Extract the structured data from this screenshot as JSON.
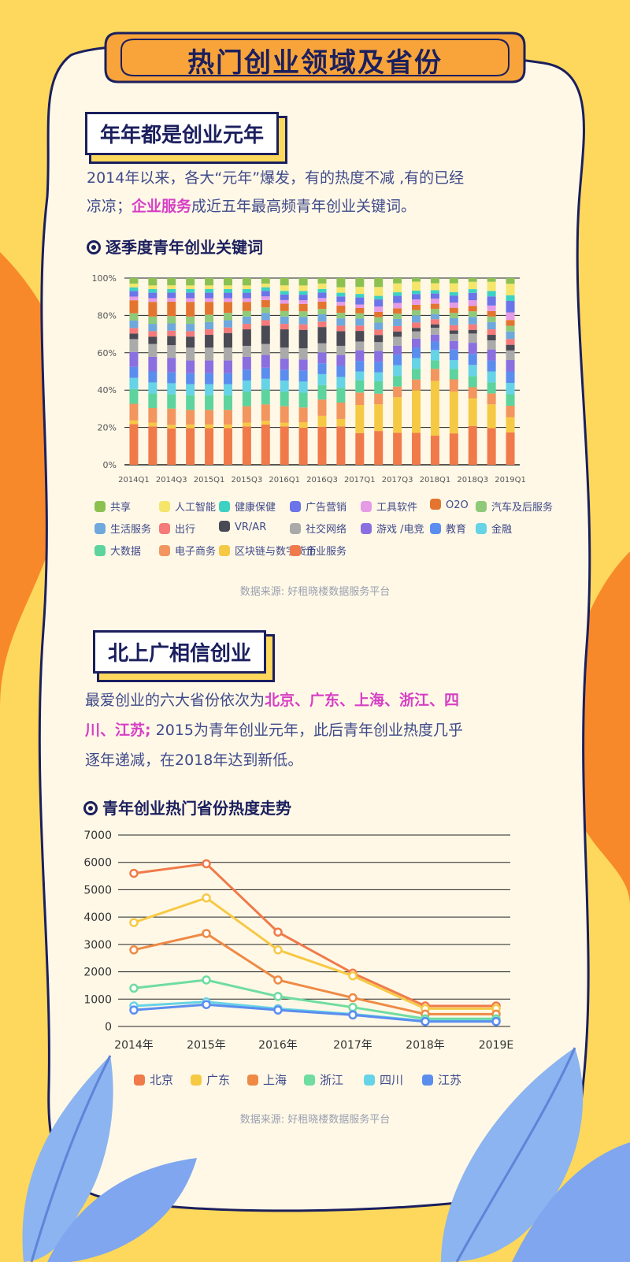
{
  "title": "热门创业领域及省份",
  "section1": {
    "heading": "年年都是创业元年",
    "para_a": "2014年以来，各大“元年”爆发，有的热度不减 ,有的已经",
    "para_b1": "凉凉；",
    "para_b_hl": "企业服务",
    "para_b2": "成近五年最高频青年创业关键词。",
    "chart_title": "逐季度青年创业关键词",
    "source": "数据来源: 好租晓楼数据服务平台"
  },
  "section2": {
    "heading": "北上广相信创业",
    "line1_a": "最爱创业的六大省份依次为",
    "line1_hl": "北京、广东、上海、浙江、四",
    "line2_hl": "川、江苏;",
    "line2_b": " 2015为青年创业元年，此后青年创业热度几乎",
    "line3": "逐年递减，在2018年达到新低。",
    "chart_title": "青年创业热门省份热度走势",
    "source": "数据来源: 好租晓楼数据服务平台"
  },
  "chart_data": [
    {
      "type": "bar",
      "stacked": true,
      "percent": true,
      "title": "逐季度青年创业关键词",
      "categories": [
        "2014Q1",
        "2014Q2",
        "2014Q3",
        "2014Q4",
        "2015Q1",
        "2015Q2",
        "2015Q3",
        "2015Q4",
        "2016Q1",
        "2016Q2",
        "2016Q3",
        "2016Q4",
        "2017Q1",
        "2017Q2",
        "2017Q3",
        "2017Q4",
        "2018Q1",
        "2018Q2",
        "2018Q3",
        "2018Q4",
        "2019Q1"
      ],
      "tick_labels": [
        "2014Q1",
        "2014Q3",
        "2015Q1",
        "2015Q3",
        "2016Q1",
        "2016Q3",
        "2017Q1",
        "2017Q3",
        "2018Q1",
        "2018Q3",
        "2019Q1"
      ],
      "yticks": [
        "0%",
        "20%",
        "40%",
        "60%",
        "80%",
        "100%"
      ],
      "ylim": [
        0,
        100
      ],
      "series": [
        {
          "name": "企业服务",
          "color": "#F07A4A",
          "values": [
            22,
            21,
            20,
            20,
            20,
            20,
            21,
            22,
            21,
            20,
            21,
            21,
            18,
            19,
            18,
            18,
            17,
            18,
            21,
            20,
            17
          ]
        },
        {
          "name": "区块链与数字货币",
          "color": "#F6C945",
          "values": [
            2,
            2,
            2,
            2,
            2,
            2,
            2,
            2,
            2,
            3,
            6,
            4,
            16,
            15,
            20,
            24,
            32,
            24,
            15,
            13,
            8
          ]
        },
        {
          "name": "电子商务",
          "color": "#F2955E",
          "values": [
            9,
            8,
            9,
            8,
            8,
            8,
            9,
            9,
            9,
            8,
            9,
            9,
            7,
            6,
            6,
            6,
            7,
            7,
            6,
            6,
            6
          ]
        },
        {
          "name": "大数据",
          "color": "#5DD39E",
          "values": [
            8,
            8,
            8,
            8,
            8,
            8,
            8,
            8,
            8,
            8,
            8,
            8,
            7,
            7,
            6,
            6,
            5,
            6,
            6,
            6,
            6
          ]
        },
        {
          "name": "金融",
          "color": "#66D3E6",
          "values": [
            6,
            6,
            6,
            6,
            6,
            6,
            6,
            6,
            6,
            6,
            6,
            6,
            5,
            5,
            6,
            6,
            6,
            5,
            6,
            6,
            6
          ]
        },
        {
          "name": "教育",
          "color": "#5B8DEF",
          "values": [
            6,
            6,
            6,
            6,
            6,
            6,
            6,
            6,
            6,
            6,
            6,
            6,
            6,
            6,
            6,
            6,
            5,
            6,
            6,
            6,
            6
          ]
        },
        {
          "name": "游戏 /电竞",
          "color": "#8A6FE0",
          "values": [
            8,
            8,
            8,
            7,
            7,
            7,
            7,
            7,
            6,
            6,
            6,
            6,
            6,
            6,
            5,
            5,
            4,
            5,
            6,
            6,
            6
          ]
        },
        {
          "name": "社交网络",
          "color": "#AAAAAA",
          "values": [
            7,
            7,
            7,
            7,
            7,
            7,
            6,
            6,
            6,
            6,
            5,
            5,
            5,
            5,
            5,
            4,
            4,
            4,
            5,
            5,
            5
          ]
        },
        {
          "name": "VR/AR",
          "color": "#4A4A55",
          "values": [
            3,
            4,
            5,
            6,
            7,
            8,
            9,
            10,
            10,
            10,
            9,
            8,
            6,
            4,
            3,
            2,
            2,
            2,
            2,
            3,
            3
          ]
        },
        {
          "name": "出行",
          "color": "#F57A7A",
          "values": [
            3,
            3,
            3,
            3,
            3,
            3,
            3,
            3,
            3,
            3,
            3,
            3,
            3,
            3,
            3,
            3,
            3,
            3,
            3,
            3,
            3
          ]
        },
        {
          "name": "生活服务",
          "color": "#6FA8DC",
          "values": [
            4,
            4,
            4,
            4,
            4,
            4,
            4,
            4,
            4,
            4,
            4,
            4,
            4,
            4,
            4,
            4,
            3,
            4,
            4,
            4,
            4
          ]
        },
        {
          "name": "汽车及后服务",
          "color": "#8FC97A",
          "values": [
            4,
            4,
            4,
            4,
            4,
            4,
            3,
            3,
            3,
            3,
            3,
            3,
            3,
            3,
            3,
            3,
            3,
            3,
            3,
            3,
            3
          ]
        },
        {
          "name": "O2O",
          "color": "#E37530",
          "values": [
            7,
            8,
            8,
            8,
            7,
            6,
            5,
            4,
            4,
            4,
            4,
            4,
            3,
            3,
            3,
            3,
            3,
            3,
            3,
            3,
            3
          ]
        },
        {
          "name": "工具软件",
          "color": "#E59BE6",
          "values": [
            2,
            2,
            2,
            2,
            2,
            2,
            2,
            2,
            2,
            2,
            2,
            2,
            2,
            3,
            3,
            3,
            3,
            3,
            3,
            3,
            4
          ]
        },
        {
          "name": "广告营销",
          "color": "#6B74E8",
          "values": [
            3,
            3,
            3,
            3,
            3,
            3,
            3,
            3,
            3,
            3,
            3,
            3,
            4,
            4,
            4,
            3,
            3,
            4,
            4,
            5,
            6
          ]
        },
        {
          "name": "健康保健",
          "color": "#3DD1C4",
          "values": [
            2,
            2,
            2,
            2,
            2,
            2,
            2,
            2,
            2,
            2,
            2,
            2,
            2,
            2,
            2,
            2,
            2,
            2,
            2,
            3,
            3
          ]
        },
        {
          "name": "人工智能",
          "color": "#F5E56B",
          "values": [
            2,
            2,
            2,
            2,
            2,
            2,
            2,
            2,
            3,
            3,
            3,
            3,
            4,
            5,
            5,
            5,
            4,
            5,
            4,
            5,
            6
          ]
        },
        {
          "name": "共享",
          "color": "#8CC152",
          "values": [
            3,
            4,
            4,
            4,
            4,
            4,
            4,
            3,
            4,
            4,
            3,
            5,
            5,
            5,
            3,
            2,
            3,
            3,
            2,
            2,
            3
          ]
        }
      ]
    },
    {
      "type": "line",
      "title": "青年创业热门省份热度走势",
      "x": [
        "2014年",
        "2015年",
        "2016年",
        "2017年",
        "2018年",
        "2019E"
      ],
      "yticks": [
        0,
        1000,
        2000,
        3000,
        4000,
        5000,
        6000,
        7000
      ],
      "ylim": [
        0,
        7000
      ],
      "series": [
        {
          "name": "北京",
          "color": "#F07A4A",
          "values": [
            5600,
            5950,
            3450,
            1950,
            750,
            750
          ]
        },
        {
          "name": "广东",
          "color": "#F6C945",
          "values": [
            3800,
            4700,
            2800,
            1850,
            650,
            650
          ]
        },
        {
          "name": "上海",
          "color": "#EE8A45",
          "values": [
            2800,
            3400,
            1700,
            1050,
            450,
            450
          ]
        },
        {
          "name": "浙江",
          "color": "#6FDCA0",
          "values": [
            1400,
            1700,
            1100,
            700,
            280,
            280
          ]
        },
        {
          "name": "四川",
          "color": "#66D3E6",
          "values": [
            750,
            900,
            650,
            450,
            200,
            200
          ]
        },
        {
          "name": "江苏",
          "color": "#5B8DEF",
          "values": [
            600,
            800,
            600,
            420,
            180,
            180
          ]
        }
      ]
    }
  ]
}
